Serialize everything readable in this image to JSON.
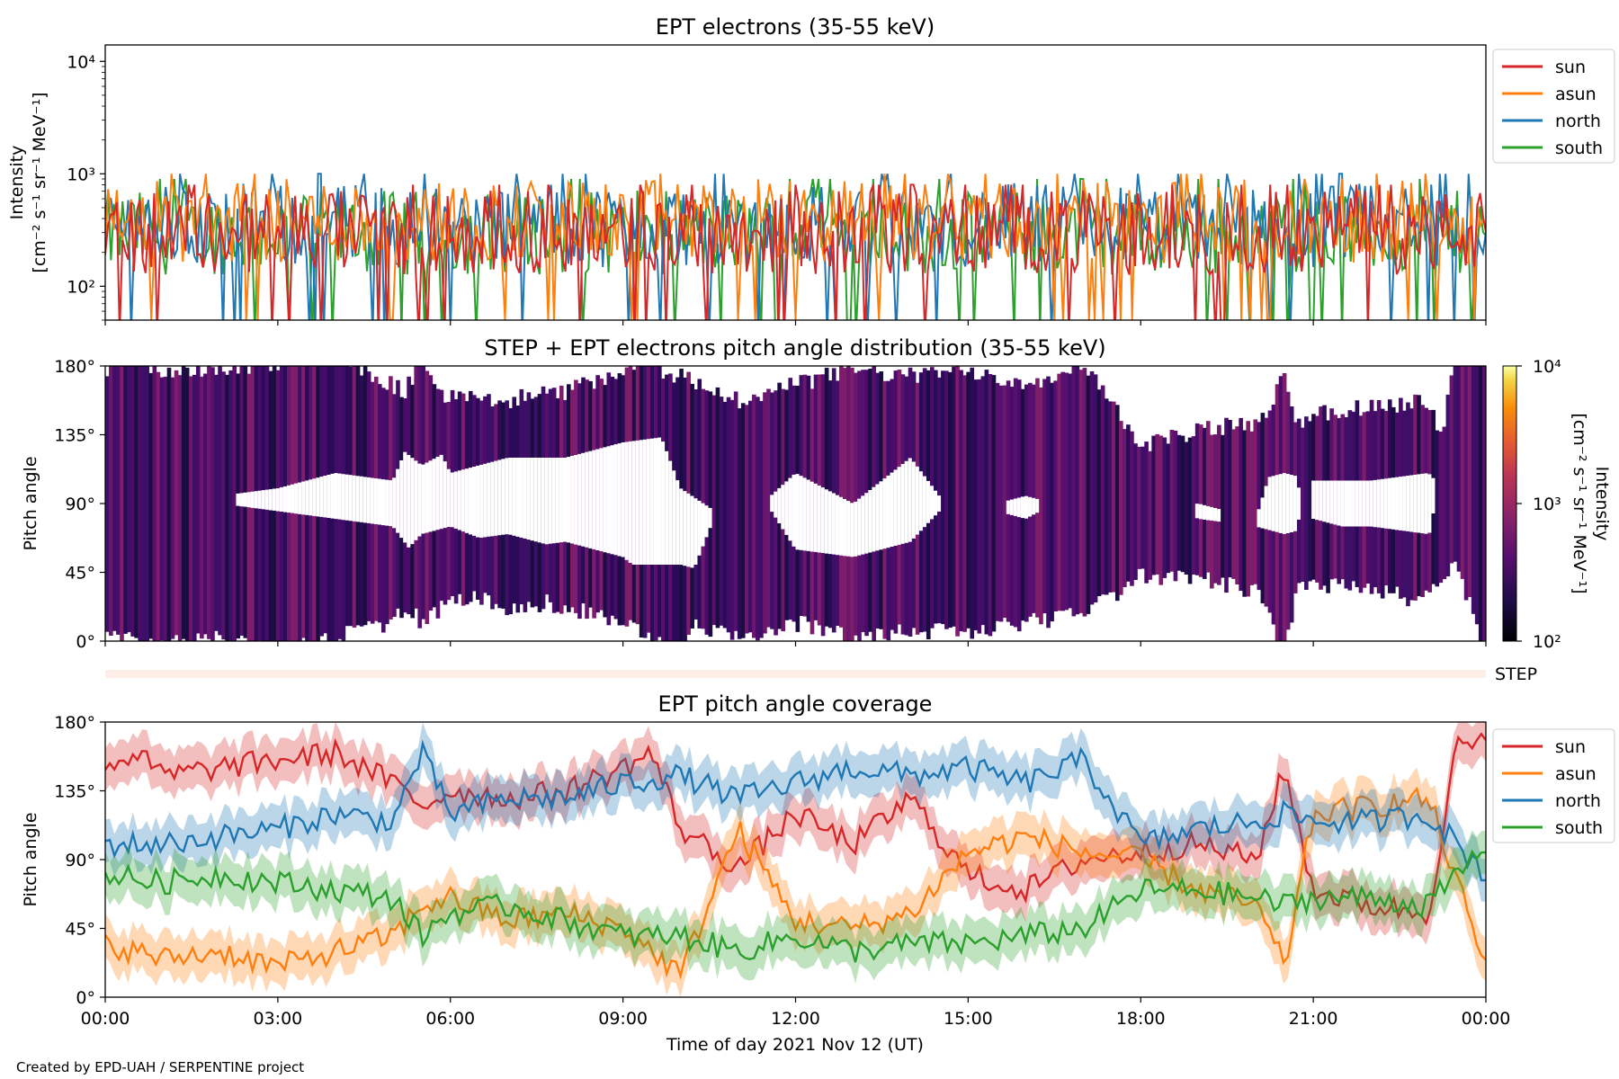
{
  "footer": {
    "credit": "Created by EPD-UAH / SERPENTINE project"
  },
  "step_label": "STEP",
  "colors": {
    "sun": "#d62728",
    "asun": "#ff7f0e",
    "north": "#1f77b4",
    "south": "#2ca02c"
  },
  "chart_data": [
    {
      "id": "intensity",
      "type": "line",
      "title": "EPT electrons (35-55 keV)",
      "ylabel_line1": "Intensity",
      "ylabel_line2": "[cm⁻² s⁻¹ sr⁻¹ MeV⁻¹]",
      "yscale": "log",
      "ylim": [
        50,
        14000
      ],
      "yticks": [
        {
          "value": 100,
          "label": "10²"
        },
        {
          "value": 1000,
          "label": "10³"
        },
        {
          "value": 10000,
          "label": "10⁴"
        }
      ],
      "xlim_hours": [
        0,
        24
      ],
      "x_ticks_shown": false,
      "legend": [
        "sun",
        "asun",
        "north",
        "south"
      ],
      "legend_position": "outside-right-top",
      "series": [
        {
          "name": "sun",
          "typical": 300,
          "range": [
            60,
            800
          ],
          "generated": true
        },
        {
          "name": "asun",
          "typical": 380,
          "range": [
            80,
            1000
          ],
          "generated": true
        },
        {
          "name": "north",
          "typical": 350,
          "range": [
            60,
            1000
          ],
          "generated": true
        },
        {
          "name": "south",
          "typical": 300,
          "range": [
            60,
            900
          ],
          "generated": true
        }
      ]
    },
    {
      "id": "pad",
      "type": "heatmap",
      "title": "STEP + EPT electrons pitch angle distribution (35-55 keV)",
      "ylabel": "Pitch angle",
      "ylim": [
        0,
        180
      ],
      "yticks": [
        "0°",
        "45°",
        "90°",
        "135°",
        "180°"
      ],
      "xlim_hours": [
        0,
        24
      ],
      "x_ticks_shown": false,
      "colorbar": {
        "label_line1": "Intensity",
        "label_line2": "[cm⁻² s⁻¹ sr⁻¹ MeV⁻¹]",
        "scale": "log",
        "range": [
          100,
          10000
        ],
        "ticks": [
          {
            "value": 100,
            "label": "10²"
          },
          {
            "value": 1000,
            "label": "10³"
          },
          {
            "value": 10000,
            "label": "10⁴"
          }
        ],
        "colormap": "inferno"
      }
    },
    {
      "id": "coverage",
      "type": "line",
      "title": "EPT pitch angle coverage",
      "ylabel": "Pitch angle",
      "xlabel": "Time of day 2021 Nov 12 (UT)",
      "ylim": [
        0,
        180
      ],
      "yticks": [
        "0°",
        "45°",
        "90°",
        "135°",
        "180°"
      ],
      "xlim_hours": [
        0,
        24
      ],
      "xticks": [
        "00:00",
        "03:00",
        "06:00",
        "09:00",
        "12:00",
        "15:00",
        "18:00",
        "21:00",
        "00:00"
      ],
      "legend": [
        "sun",
        "asun",
        "north",
        "south"
      ],
      "legend_position": "outside-right-top",
      "series": [
        {
          "name": "sun",
          "hours": [
            0,
            0.5,
            1,
            2,
            3,
            4,
            5,
            5.5,
            6,
            7,
            8,
            9,
            9.5,
            10,
            11,
            12,
            13,
            14,
            15,
            16,
            17,
            18,
            19,
            20,
            20.5,
            21,
            22,
            23,
            23.5,
            24
          ],
          "values": [
            150,
            160,
            145,
            150,
            155,
            160,
            140,
            125,
            135,
            130,
            135,
            150,
            160,
            110,
            85,
            120,
            100,
            130,
            80,
            70,
            90,
            95,
            100,
            90,
            150,
            70,
            60,
            55,
            165,
            165
          ]
        },
        {
          "name": "asun",
          "hours": [
            0,
            1,
            2,
            3,
            4,
            5,
            5.5,
            6,
            7,
            8,
            9,
            10,
            11,
            12,
            13,
            14,
            15,
            16,
            17,
            18,
            19,
            20,
            20.5,
            21,
            22,
            23,
            24
          ],
          "values": [
            35,
            25,
            30,
            20,
            30,
            40,
            60,
            65,
            50,
            55,
            45,
            15,
            110,
            50,
            45,
            55,
            95,
            105,
            95,
            90,
            70,
            60,
            20,
            120,
            125,
            130,
            20
          ]
        },
        {
          "name": "north",
          "hours": [
            0,
            1,
            2,
            3,
            4,
            5,
            5.5,
            6,
            7,
            8,
            9,
            10,
            11,
            12,
            13,
            14,
            15,
            16,
            17,
            18,
            19,
            20,
            20.5,
            21,
            22,
            23,
            24
          ],
          "values": [
            100,
            100,
            105,
            110,
            120,
            115,
            160,
            120,
            130,
            130,
            140,
            145,
            130,
            140,
            150,
            145,
            150,
            140,
            155,
            100,
            110,
            115,
            120,
            115,
            115,
            120,
            80
          ]
        },
        {
          "name": "south",
          "hours": [
            0,
            1,
            2,
            3,
            4,
            5,
            5.5,
            6,
            7,
            8,
            9,
            10,
            11,
            12,
            13,
            14,
            15,
            16,
            17,
            18,
            19,
            20,
            20.5,
            21,
            22,
            23,
            24
          ],
          "values": [
            80,
            75,
            80,
            75,
            70,
            65,
            40,
            55,
            60,
            50,
            40,
            40,
            30,
            40,
            30,
            35,
            35,
            40,
            45,
            70,
            70,
            65,
            60,
            65,
            65,
            60,
            100
          ]
        }
      ]
    }
  ]
}
